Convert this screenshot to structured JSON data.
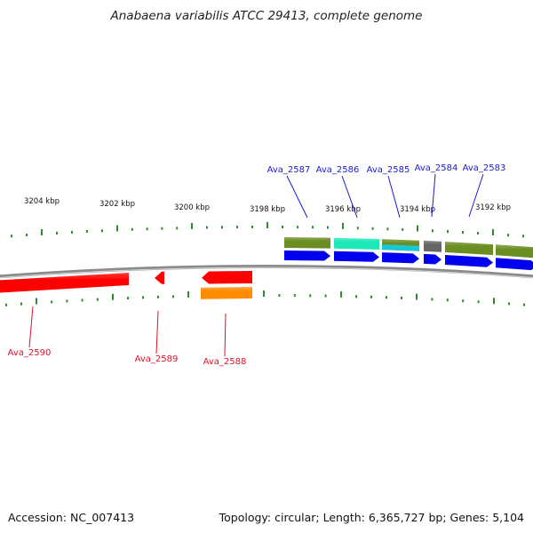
{
  "title": "Anabaena variabilis ATCC 29413, complete genome",
  "footer": {
    "accession": "Accession: NC_007413",
    "summary": "Topology: circular; Length: 6,365,727 bp; Genes: 5,104"
  },
  "colors": {
    "backbone": "#8a8a8a",
    "tick": "#2e8b2e",
    "forward_label": "#1a1ad0",
    "reverse_label": "#e0102a"
  },
  "scale": {
    "labels": [
      "3204 kbp",
      "3202 kbp",
      "3200 kbp",
      "3198 kbp",
      "3196 kbp",
      "3194 kbp",
      "3192 kbp"
    ]
  },
  "features": {
    "forward_genes": [
      {
        "label": "Ava_2587",
        "color": "#0000ee"
      },
      {
        "label": "Ava_2586",
        "color": "#0000ee"
      },
      {
        "label": "Ava_2585",
        "color": "#0000ee"
      },
      {
        "label": "Ava_2584",
        "color": "#0000ee"
      },
      {
        "label": "Ava_2583",
        "color": "#0000ee"
      }
    ],
    "forward_cds": [
      {
        "color": "#6b8e23"
      },
      {
        "color": "#1de9b6"
      },
      {
        "color": "#6b8e23"
      },
      {
        "color": "#666666"
      },
      {
        "color": "#6b8e23"
      }
    ],
    "reverse_genes": [
      {
        "label": "Ava_2590",
        "color": "#ff0000"
      },
      {
        "label": "Ava_2589",
        "color": "#ff0000"
      },
      {
        "label": "Ava_2588",
        "color": "#ff0000"
      }
    ],
    "reverse_cds": [
      {
        "color": "#ff8c00"
      }
    ]
  }
}
